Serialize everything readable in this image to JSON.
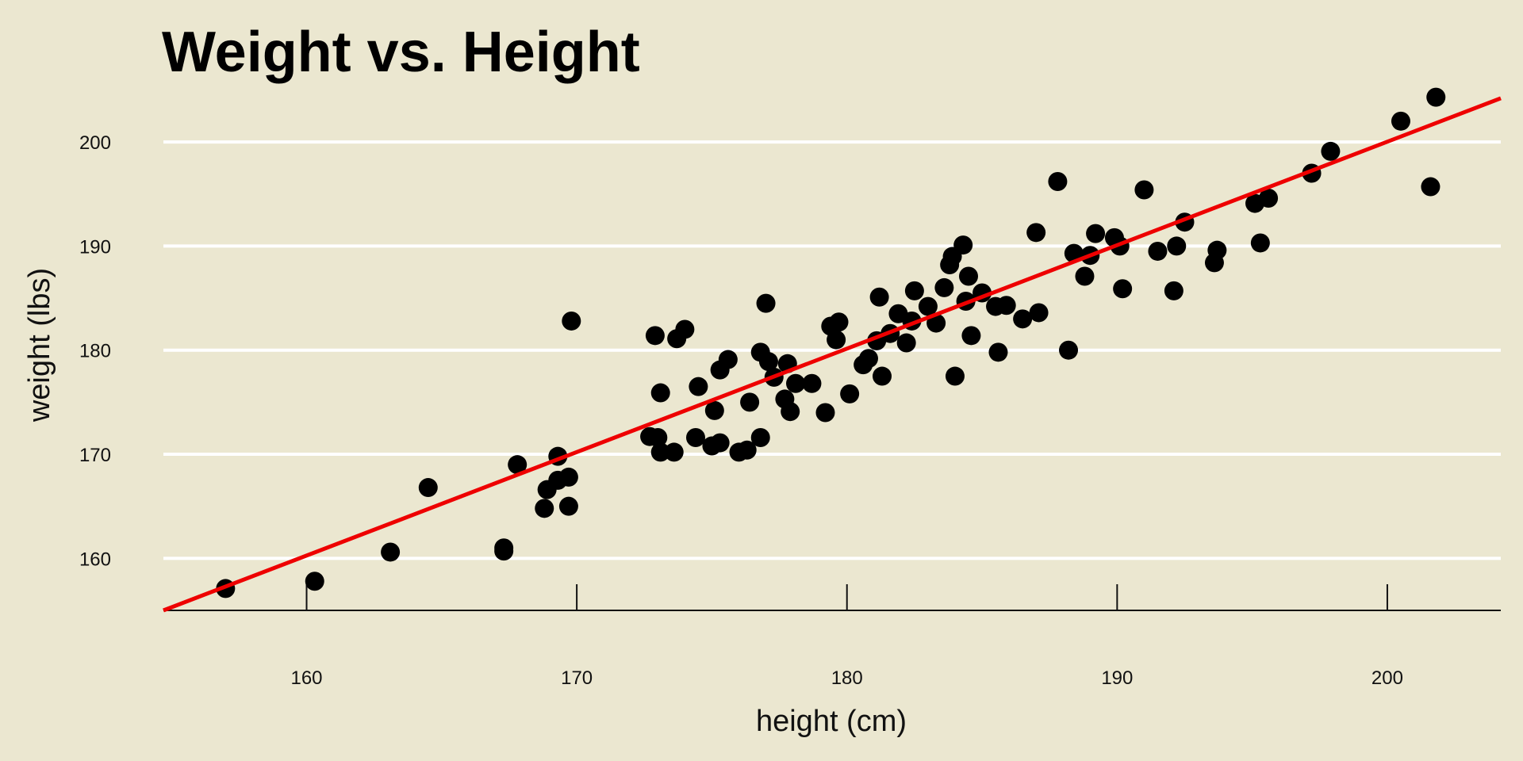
{
  "chart_data": {
    "type": "scatter",
    "title": "Weight vs. Height",
    "xlabel": "height (cm)",
    "ylabel": "weight (lbs)",
    "xlim": [
      154.7,
      204.2
    ],
    "ylim": [
      155,
      204.5
    ],
    "x_ticks": [
      160,
      170,
      180,
      190,
      200
    ],
    "y_ticks": [
      160,
      170,
      180,
      190,
      200
    ],
    "grid": "horizontal",
    "background_color": "#ebe7d0",
    "point_color": "#000000",
    "fit_line_color": "#ee0000",
    "series": [
      {
        "points": [
          [
            157.0,
            157.1
          ],
          [
            160.3,
            157.8
          ],
          [
            163.1,
            160.6
          ],
          [
            164.5,
            166.8
          ],
          [
            167.3,
            161.0
          ],
          [
            167.3,
            160.7
          ],
          [
            167.8,
            169.0
          ],
          [
            168.8,
            164.8
          ],
          [
            168.9,
            166.6
          ],
          [
            169.3,
            167.5
          ],
          [
            169.3,
            169.8
          ],
          [
            169.7,
            167.8
          ],
          [
            169.7,
            165.0
          ],
          [
            169.8,
            182.8
          ],
          [
            172.7,
            171.7
          ],
          [
            172.9,
            181.4
          ],
          [
            173.0,
            171.6
          ],
          [
            173.1,
            170.2
          ],
          [
            173.1,
            175.9
          ],
          [
            173.6,
            170.2
          ],
          [
            173.7,
            181.1
          ],
          [
            174.0,
            182.0
          ],
          [
            174.4,
            171.6
          ],
          [
            174.5,
            176.5
          ],
          [
            175.0,
            170.8
          ],
          [
            175.1,
            174.2
          ],
          [
            175.3,
            171.1
          ],
          [
            175.3,
            178.1
          ],
          [
            175.6,
            179.1
          ],
          [
            176.0,
            170.2
          ],
          [
            176.3,
            170.4
          ],
          [
            176.4,
            175.0
          ],
          [
            176.8,
            171.6
          ],
          [
            176.8,
            179.8
          ],
          [
            177.0,
            184.5
          ],
          [
            177.1,
            178.9
          ],
          [
            177.3,
            177.4
          ],
          [
            177.7,
            175.3
          ],
          [
            177.8,
            178.7
          ],
          [
            177.9,
            174.1
          ],
          [
            178.1,
            176.8
          ],
          [
            178.7,
            176.8
          ],
          [
            179.2,
            174.0
          ],
          [
            179.4,
            182.3
          ],
          [
            179.6,
            181.0
          ],
          [
            179.7,
            182.7
          ],
          [
            180.1,
            175.8
          ],
          [
            180.6,
            178.6
          ],
          [
            180.8,
            179.2
          ],
          [
            181.1,
            180.9
          ],
          [
            181.2,
            185.1
          ],
          [
            181.3,
            177.5
          ],
          [
            181.6,
            181.6
          ],
          [
            181.9,
            183.5
          ],
          [
            182.2,
            180.7
          ],
          [
            182.4,
            182.8
          ],
          [
            182.5,
            185.7
          ],
          [
            183.0,
            184.2
          ],
          [
            183.3,
            182.6
          ],
          [
            183.6,
            186.0
          ],
          [
            183.8,
            188.2
          ],
          [
            183.9,
            189.0
          ],
          [
            184.0,
            177.5
          ],
          [
            184.3,
            190.1
          ],
          [
            184.4,
            184.7
          ],
          [
            184.5,
            187.1
          ],
          [
            184.6,
            181.4
          ],
          [
            185.0,
            185.5
          ],
          [
            185.5,
            184.2
          ],
          [
            185.6,
            179.8
          ],
          [
            185.9,
            184.3
          ],
          [
            186.5,
            183.0
          ],
          [
            187.0,
            191.3
          ],
          [
            187.1,
            183.6
          ],
          [
            187.8,
            196.2
          ],
          [
            188.2,
            180.0
          ],
          [
            188.4,
            189.3
          ],
          [
            188.8,
            187.1
          ],
          [
            189.0,
            189.1
          ],
          [
            189.2,
            191.2
          ],
          [
            189.9,
            190.8
          ],
          [
            190.1,
            190.0
          ],
          [
            190.2,
            185.9
          ],
          [
            191.0,
            195.4
          ],
          [
            191.5,
            189.5
          ],
          [
            192.1,
            185.7
          ],
          [
            192.2,
            190.0
          ],
          [
            192.5,
            192.3
          ],
          [
            193.6,
            188.4
          ],
          [
            193.7,
            189.6
          ],
          [
            195.1,
            194.1
          ],
          [
            195.3,
            190.3
          ],
          [
            195.6,
            194.6
          ],
          [
            197.2,
            197.0
          ],
          [
            197.9,
            199.1
          ],
          [
            200.5,
            202.0
          ],
          [
            201.6,
            195.7
          ],
          [
            201.8,
            204.3
          ]
        ]
      }
    ],
    "fit_line": {
      "x": [
        154.7,
        204.2
      ],
      "y": [
        155.0,
        204.2
      ]
    }
  }
}
